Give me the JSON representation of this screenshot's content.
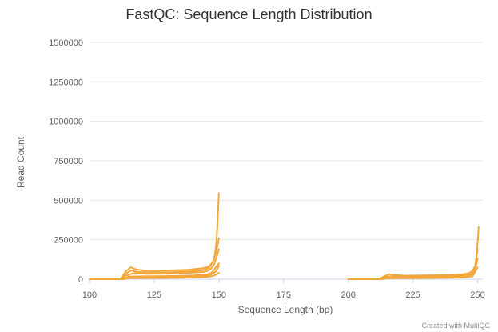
{
  "chart_data": {
    "type": "line",
    "title": "FastQC: Sequence Length Distribution",
    "xlabel": "Sequence Length (bp)",
    "ylabel": "Read Count",
    "xlim": [
      100,
      252
    ],
    "ylim": [
      0,
      1500000
    ],
    "x_ticks": [
      100,
      125,
      150,
      175,
      200,
      225,
      250
    ],
    "y_ticks": [
      0,
      250000,
      500000,
      750000,
      1000000,
      1250000,
      1500000
    ],
    "grid": true,
    "color": "#f1a73c",
    "series": [
      {
        "x": [
          100,
          112,
          114,
          116,
          118,
          121,
          126,
          132,
          138,
          144,
          146,
          147,
          148,
          148.5,
          149,
          149.4,
          149.7,
          150
        ],
        "y": [
          0,
          0,
          50000,
          75000,
          62000,
          55000,
          53000,
          56000,
          60000,
          70000,
          80000,
          95000,
          120000,
          160000,
          230000,
          330000,
          440000,
          545000
        ]
      },
      {
        "x": [
          100,
          112,
          114,
          116,
          119,
          125,
          132,
          139,
          144,
          146,
          147,
          148,
          149,
          150
        ],
        "y": [
          0,
          0,
          35000,
          55000,
          45000,
          43000,
          45000,
          50000,
          58000,
          70000,
          90000,
          120000,
          170000,
          260000
        ]
      },
      {
        "x": [
          100,
          112,
          114,
          117,
          122,
          130,
          138,
          144,
          146,
          147,
          148,
          149,
          150
        ],
        "y": [
          0,
          0,
          22000,
          38000,
          34000,
          35000,
          40000,
          46000,
          55000,
          68000,
          90000,
          130000,
          190000
        ]
      },
      {
        "x": [
          100,
          113,
          115,
          120,
          130,
          140,
          145,
          147,
          148,
          149,
          150
        ],
        "y": [
          0,
          0,
          16000,
          18000,
          20000,
          24000,
          30000,
          38000,
          55000,
          80000,
          100000
        ]
      },
      {
        "x": [
          100,
          113,
          115,
          120,
          130,
          140,
          145,
          147,
          149,
          150
        ],
        "y": [
          0,
          0,
          10000,
          12000,
          14000,
          17000,
          22000,
          30000,
          50000,
          85000
        ]
      },
      {
        "x": [
          100,
          113,
          115,
          125,
          135,
          145,
          148,
          150
        ],
        "y": [
          0,
          0,
          6000,
          7000,
          9000,
          13000,
          22000,
          40000
        ]
      },
      {
        "x": [
          200,
          212,
          214,
          216,
          218,
          222,
          230,
          238,
          244,
          247,
          248,
          249,
          249.5,
          250,
          250.4
        ],
        "y": [
          0,
          0,
          20000,
          32000,
          26000,
          23000,
          24000,
          26000,
          30000,
          40000,
          55000,
          80000,
          130000,
          230000,
          330000
        ]
      },
      {
        "x": [
          200,
          212,
          214,
          217,
          222,
          232,
          242,
          246,
          248,
          249,
          250
        ],
        "y": [
          0,
          0,
          14000,
          20000,
          17000,
          18000,
          22000,
          30000,
          45000,
          80000,
          190000
        ]
      },
      {
        "x": [
          200,
          213,
          215,
          225,
          238,
          246,
          248,
          249,
          250
        ],
        "y": [
          0,
          0,
          9000,
          11000,
          14000,
          20000,
          32000,
          55000,
          130000
        ]
      },
      {
        "x": [
          200,
          213,
          215,
          230,
          244,
          248,
          250
        ],
        "y": [
          0,
          0,
          5000,
          7000,
          10000,
          18000,
          75000
        ]
      }
    ]
  },
  "credit": "Created with MultiQC"
}
